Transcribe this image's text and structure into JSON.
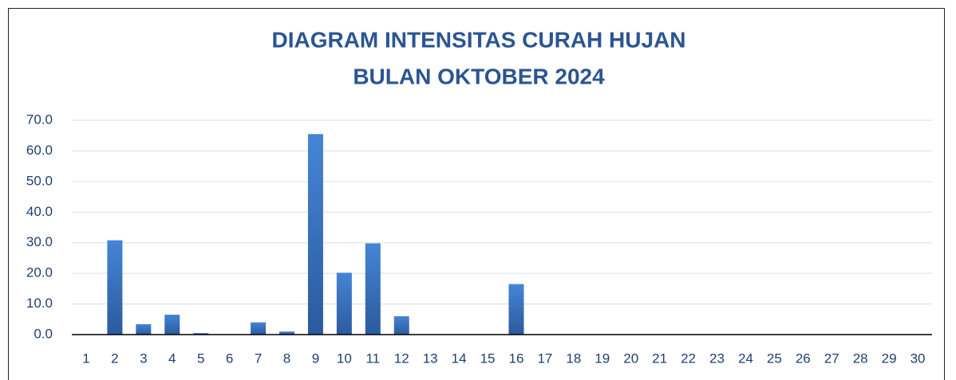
{
  "chart_data": {
    "type": "bar",
    "title": [
      "DIAGRAM INTENSITAS CURAH HUJAN",
      "BULAN OKTOBER 2024"
    ],
    "categories": [
      "1",
      "2",
      "3",
      "4",
      "5",
      "6",
      "7",
      "8",
      "9",
      "10",
      "11",
      "12",
      "13",
      "14",
      "15",
      "16",
      "17",
      "18",
      "19",
      "20",
      "21",
      "22",
      "23",
      "24",
      "25",
      "26",
      "27",
      "28",
      "29",
      "30"
    ],
    "values": [
      0,
      30.8,
      3.4,
      6.5,
      0.5,
      0,
      4.0,
      1.0,
      65.5,
      20.2,
      29.8,
      6.0,
      0,
      0,
      0,
      16.5,
      0,
      0,
      0,
      0,
      0,
      0,
      0,
      0,
      0,
      0,
      0,
      0,
      0,
      0
    ],
    "color": "#3a72c4",
    "ylim": [
      0,
      70
    ],
    "yticks": [
      {
        "value": 0,
        "label": "0.0"
      },
      {
        "value": 10,
        "label": "10.0"
      },
      {
        "value": 20,
        "label": "20.0"
      },
      {
        "value": 30,
        "label": "30.0"
      },
      {
        "value": 40,
        "label": "40.0"
      },
      {
        "value": 50,
        "label": "50.0"
      },
      {
        "value": 60,
        "label": "60.0"
      },
      {
        "value": 70,
        "label": "70.0"
      }
    ],
    "grid": true
  }
}
